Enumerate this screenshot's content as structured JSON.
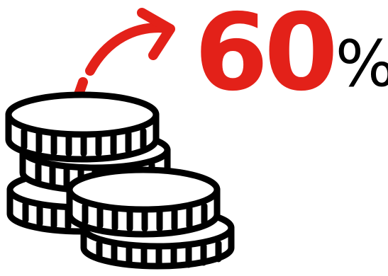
{
  "graphic": {
    "percent_value": "60",
    "percent_symbol": "%",
    "colors": {
      "accent": "#e32119",
      "ink": "#000000",
      "background": "#ffffff"
    },
    "icons": {
      "arrow": "curved-arrow-icon",
      "coins": "coin-stack-icon"
    }
  }
}
